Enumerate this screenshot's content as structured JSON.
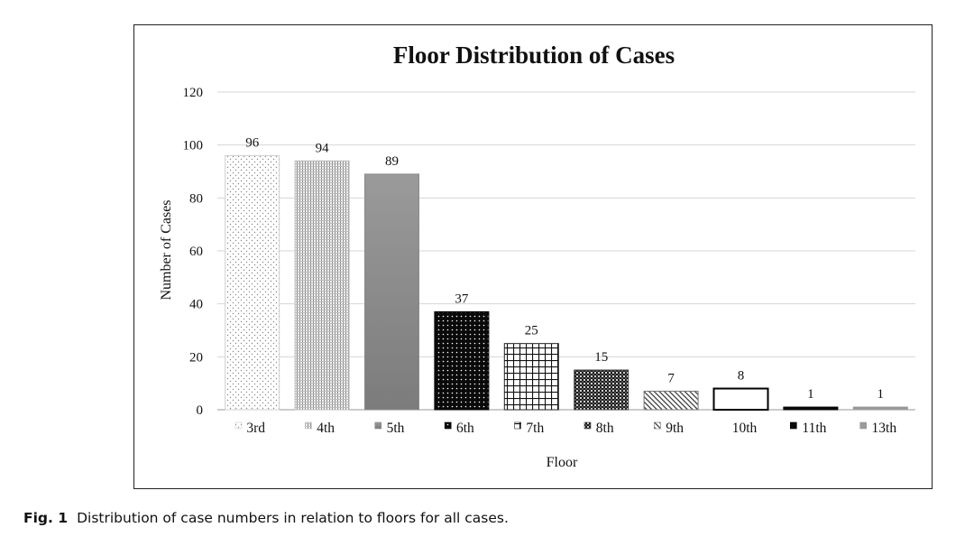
{
  "chart_data": {
    "type": "bar",
    "title": "Floor Distribution of Cases",
    "xlabel": "Floor",
    "ylabel": "Number of Cases",
    "categories": [
      "3rd",
      "4th",
      "5th",
      "6th",
      "7th",
      "8th",
      "9th",
      "10th",
      "11th",
      "13th"
    ],
    "values": [
      96,
      94,
      89,
      37,
      25,
      15,
      7,
      8,
      1,
      1
    ],
    "ylim": [
      0,
      120
    ],
    "yticks": [
      0,
      20,
      40,
      60,
      80,
      100,
      120
    ],
    "grid": true,
    "data_labels": true,
    "legend": "none"
  },
  "caption": {
    "label": "Fig. 1",
    "text": "Distribution of case numbers in relation to floors for all cases."
  }
}
